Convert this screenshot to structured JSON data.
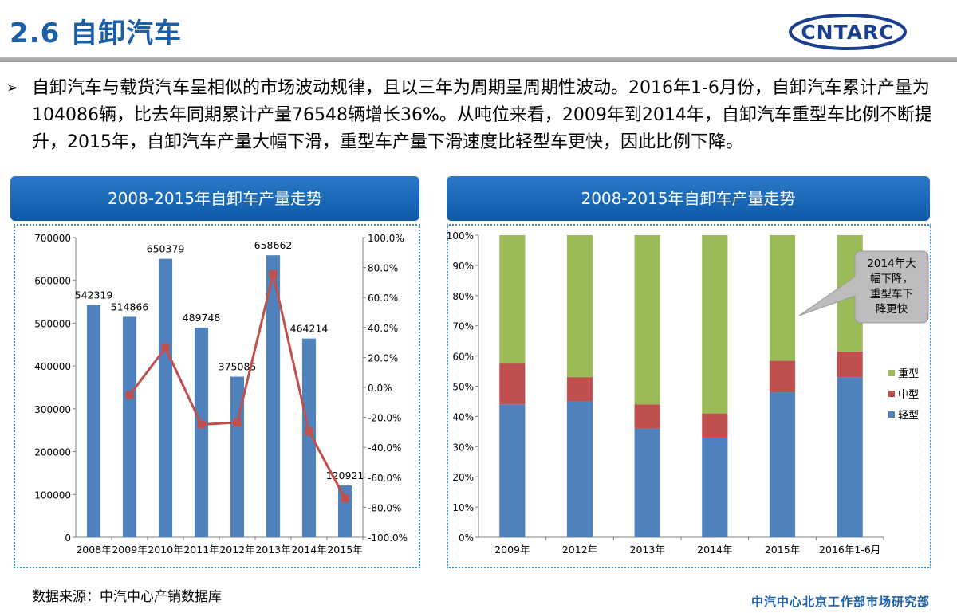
{
  "header": {
    "title": "2.6 自卸汽车",
    "logo_text": "CNTARC"
  },
  "intro": {
    "bullet": "➢",
    "text": "自卸汽车与载货汽车呈相似的市场波动规律，且以三年为周期呈周期性波动。2016年1-6月份，自卸汽车累计产量为104086辆，比去年同期累计产量76548辆增长36%。从吨位来看，2009年到2014年，自卸汽车重型车比例不断提升，2015年，自卸汽车产量大幅下滑，重型车产量下滑速度比轻型车更快，因此比例下降。"
  },
  "colors": {
    "brand": "#1b5fa8",
    "bar": "#4f81bd",
    "line": "#c0504d",
    "heavy": "#9bbb59",
    "medium": "#c0504d",
    "light": "#4f81bd"
  },
  "chart_data": [
    {
      "type": "bar",
      "title": "2008-2015年自卸车产量走势",
      "categories": [
        "2008年",
        "2009年",
        "2010年",
        "2011年",
        "2012年",
        "2013年",
        "2014年",
        "2015年"
      ],
      "series": [
        {
          "values": [
            542319,
            514866,
            650379,
            489748,
            375085,
            658662,
            464214,
            120921
          ]
        },
        {
          "values": [
            null,
            -5.1,
            26.3,
            -24.7,
            -23.4,
            75.6,
            -29.5,
            -74.0
          ],
          "type": "line",
          "axis": "right"
        }
      ],
      "data_labels": [
        "542319",
        "514866",
        "650379",
        "489748",
        "375085",
        "658662",
        "464214",
        "120921"
      ],
      "ylim": [
        0,
        700000
      ],
      "yticks": [
        "700000",
        "600000",
        "500000",
        "400000",
        "300000",
        "200000",
        "100000",
        "0"
      ],
      "y2lim": [
        -100,
        100
      ],
      "y2ticks": [
        "100.0%",
        "80.0%",
        "60.0%",
        "40.0%",
        "20.0%",
        "0.0%",
        "-20.0%",
        "-40.0%",
        "-60.0%",
        "-80.0%",
        "-100.0%"
      ],
      "grid": false,
      "legend": "none"
    },
    {
      "type": "bar",
      "stacked": true,
      "title": "2008-2015年自卸车产量走势",
      "categories": [
        "2009年",
        "2012年",
        "2013年",
        "2014年",
        "2015年",
        "2016年1-6月"
      ],
      "series": [
        {
          "name": "轻型",
          "values": [
            44,
            45,
            36,
            33,
            48,
            53
          ]
        },
        {
          "name": "中型",
          "values": [
            13.5,
            8,
            8,
            8,
            10.5,
            8.5
          ]
        },
        {
          "name": "重型",
          "values": [
            42.5,
            47,
            56,
            59,
            41.5,
            38.5
          ]
        }
      ],
      "ylim": [
        0,
        100
      ],
      "yticks": [
        "100%",
        "90%",
        "80%",
        "70%",
        "60%",
        "50%",
        "40%",
        "30%",
        "20%",
        "10%",
        "0%"
      ],
      "legend": "right",
      "legend_order": [
        "重型",
        "中型",
        "轻型"
      ],
      "annotation": "2014年大幅下降，重型车下降更快",
      "grid": false
    }
  ],
  "source": "数据来源：中汽中心产销数据库",
  "footer": "中汽中心北京工作部市场研究部"
}
